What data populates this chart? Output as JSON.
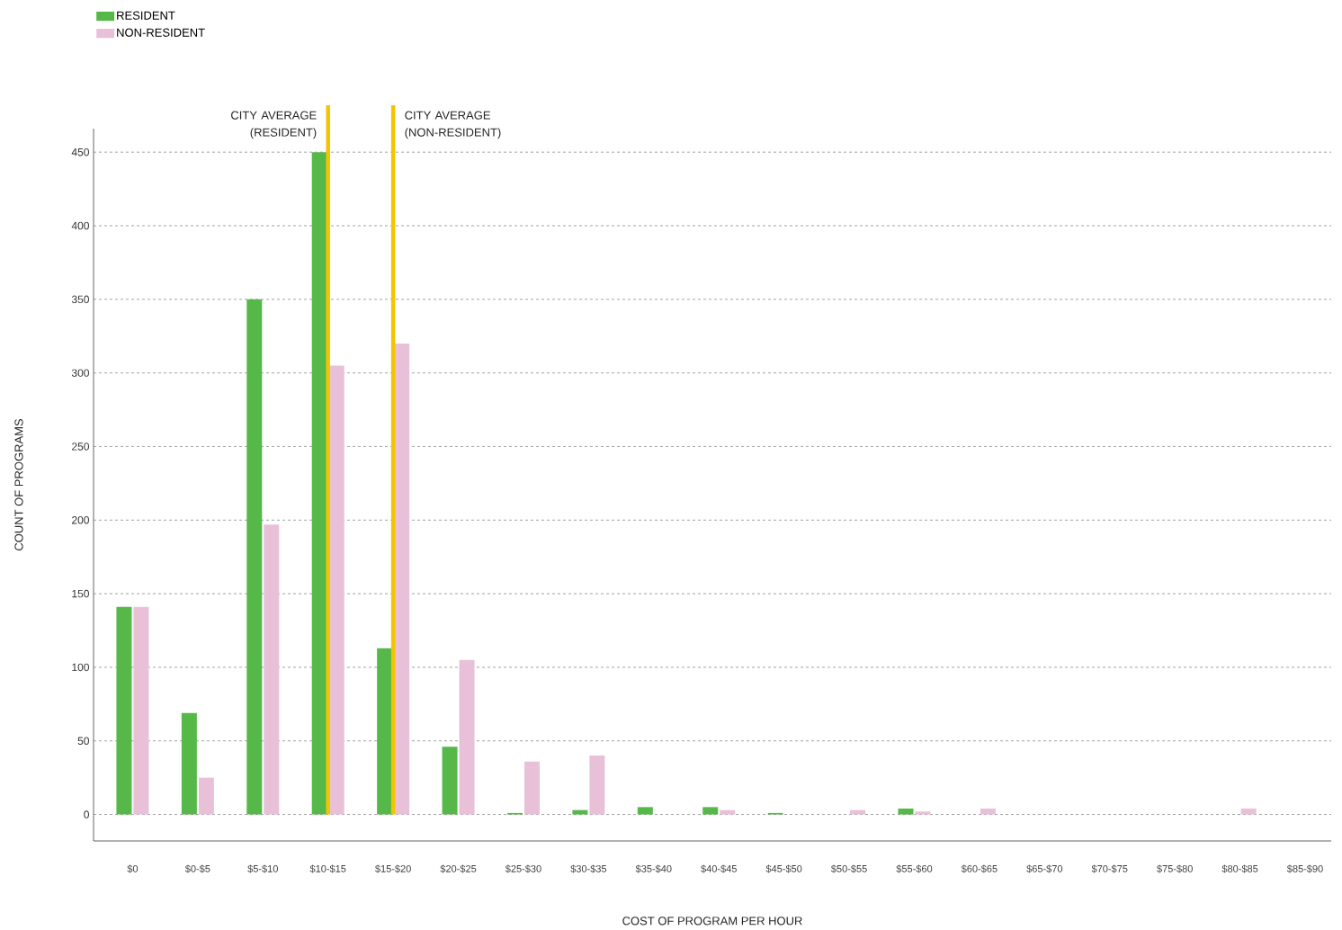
{
  "chart_data": {
    "type": "bar",
    "xlabel": "COST OF PROGRAM PER HOUR",
    "ylabel": "COUNT OF PROGRAMS",
    "categories": [
      "$0",
      "$0-$5",
      "$5-$10",
      "$10-$15",
      "$15-$20",
      "$20-$25",
      "$25-$30",
      "$30-$35",
      "$35-$40",
      "$40-$45",
      "$45-$50",
      "$50-$55",
      "$55-$60",
      "$60-$65",
      "$65-$70",
      "$70-$75",
      "$75-$80",
      "$80-$85",
      "$85-$90"
    ],
    "series": [
      {
        "name": "RESIDENT",
        "color": "#55b848",
        "values": [
          141,
          69,
          350,
          450,
          113,
          46,
          1,
          3,
          5,
          5,
          1,
          0,
          4,
          0,
          0,
          0,
          0,
          0,
          0
        ]
      },
      {
        "name": "NON-RESIDENT",
        "color": "#e8c1d9",
        "values": [
          141,
          25,
          197,
          305,
          320,
          105,
          36,
          40,
          0,
          3,
          0,
          3,
          2,
          4,
          0,
          0,
          0,
          4,
          0
        ]
      }
    ],
    "ylim": [
      -18,
      466
    ],
    "yticks": [
      0,
      50,
      100,
      150,
      200,
      250,
      300,
      350,
      400,
      450
    ],
    "ref_lines": [
      {
        "axis": "x",
        "value": "$10-$15",
        "label": "CITY AVERAGE (RESIDENT)",
        "color": "#f5c400"
      },
      {
        "axis": "x",
        "value": "$15-$20",
        "label": "CITY AVERAGE (NON-RESIDENT)",
        "color": "#f5c400"
      }
    ],
    "grid": "y",
    "legend": "top left"
  }
}
